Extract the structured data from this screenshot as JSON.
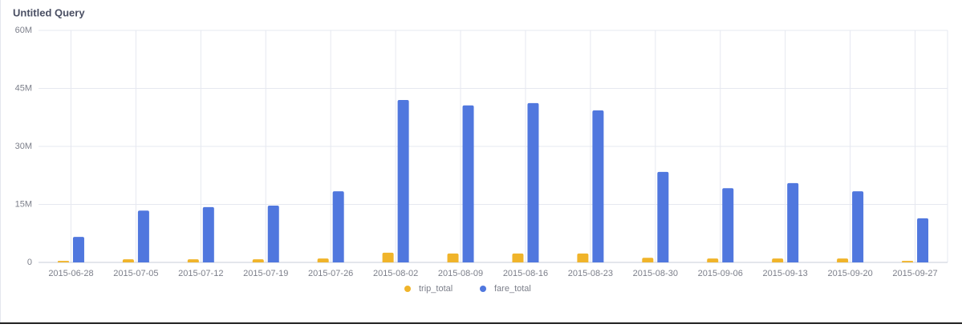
{
  "chart_data": {
    "type": "bar",
    "title": "Untitled Query",
    "categories": [
      "2015-06-28",
      "2015-07-05",
      "2015-07-12",
      "2015-07-19",
      "2015-07-26",
      "2015-08-02",
      "2015-08-09",
      "2015-08-16",
      "2015-08-23",
      "2015-08-30",
      "2015-09-06",
      "2015-09-13",
      "2015-09-20",
      "2015-09-27"
    ],
    "series": [
      {
        "name": "trip_total",
        "color": "#f0b42a",
        "values": [
          400000,
          800000,
          800000,
          800000,
          1000000,
          2500000,
          2300000,
          2300000,
          2300000,
          1200000,
          1000000,
          1000000,
          1000000,
          400000
        ]
      },
      {
        "name": "fare_total",
        "color": "#5077de",
        "values": [
          6600000,
          13400000,
          14300000,
          14700000,
          18400000,
          42000000,
          40600000,
          41200000,
          39300000,
          23400000,
          19200000,
          20500000,
          18400000,
          11400000
        ]
      }
    ],
    "ylim": [
      0,
      60000000
    ],
    "yticks": [
      0,
      {
        "value": 15000000,
        "label": "15M"
      },
      {
        "value": 30000000,
        "label": "30M"
      },
      {
        "value": 45000000,
        "label": "45M"
      },
      {
        "value": 60000000,
        "label": "60M"
      }
    ],
    "grid": true
  }
}
